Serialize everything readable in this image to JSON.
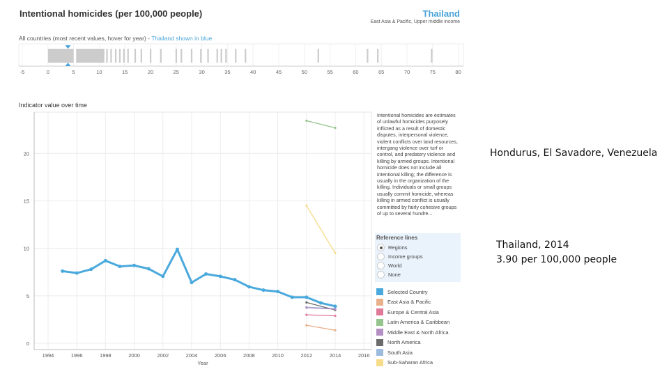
{
  "header": {
    "title": "Intentional homicides (per 100,000 people)",
    "country": "Thailand",
    "country_sub": "East Asia & Pacific, Upper middle income"
  },
  "strip": {
    "caption_prefix": "All countries (most recent values, hover for year) - ",
    "caption_highlight": "Thailand shown in blue",
    "ticks": [
      -5,
      0,
      5,
      10,
      15,
      20,
      25,
      30,
      35,
      40,
      45,
      50,
      55,
      60,
      65,
      70,
      75,
      80
    ],
    "dense_ranges": [
      [
        0,
        5
      ],
      [
        5.5,
        11
      ]
    ],
    "values": [
      11.5,
      12.3,
      13.2,
      14,
      14.8,
      15.6,
      17,
      18.2,
      20,
      22,
      25,
      26,
      28,
      29.8,
      31.2,
      33,
      33.8,
      34.7,
      36.6,
      38.5,
      52.7,
      62.3,
      64.3,
      74.8
    ],
    "selected_value": 3.9,
    "bar_color": "#cccccc",
    "marker_color": "#4aa3d8"
  },
  "chart_title": "Indicator value over time",
  "description": "Intentional homicides are estimates of unlawful homicides purposely inflicted as a result of domestic disputes, interpersonal violence, violent conflicts over land resources, intergang violence over turf or control, and predatory violence and killing by armed groups. Intentional homicide does not include all intentional killing; the difference is usually in the organization of the killing. Individuals or small groups usually commit homicide, whereas killing in armed conflict is usually committed by fairly cohesive groups of up to several hundre...",
  "reference_lines": {
    "title": "Reference lines",
    "options": [
      "Regions",
      "Income groups",
      "World",
      "None"
    ],
    "selected": "Regions"
  },
  "chart_data": {
    "type": "line",
    "xlabel": "Year",
    "ylabel": "",
    "xlim": [
      1993,
      2016.5
    ],
    "ylim": [
      0,
      25
    ],
    "xticks": [
      1994,
      1996,
      1998,
      2000,
      2002,
      2004,
      2006,
      2008,
      2010,
      2012,
      2014,
      2016
    ],
    "yticks": [
      0,
      5,
      10,
      15,
      20
    ],
    "grid": true,
    "series": [
      {
        "name": "Selected Country",
        "color": "#4aa9dc",
        "x": [
          1995,
          1996,
          1997,
          1998,
          1999,
          2000,
          2001,
          2002,
          2003,
          2004,
          2005,
          2006,
          2007,
          2008,
          2009,
          2010,
          2011,
          2012,
          2013,
          2014
        ],
        "y": [
          7.6,
          7.4,
          7.8,
          8.7,
          8.1,
          8.2,
          7.85,
          7.05,
          9.9,
          6.4,
          7.3,
          7.05,
          6.7,
          5.95,
          5.6,
          5.45,
          4.85,
          4.85,
          4.25,
          3.9
        ]
      },
      {
        "name": "East Asia & Pacific",
        "color": "#e9b08c",
        "x": [
          2012,
          2014
        ],
        "y": [
          1.9,
          1.37
        ]
      },
      {
        "name": "Europe & Central Asia",
        "color": "#e07a98",
        "x": [
          2012,
          2014
        ],
        "y": [
          3.0,
          2.9
        ]
      },
      {
        "name": "Latin America & Caribbean",
        "color": "#96c58e",
        "x": [
          2012,
          2014
        ],
        "y": [
          23.45,
          22.7
        ]
      },
      {
        "name": "Middle East & North Africa",
        "color": "#b38fc4",
        "x": [
          2012,
          2014
        ],
        "y": [
          3.75,
          3.6
        ]
      },
      {
        "name": "North America",
        "color": "#6b6b6b",
        "x": [
          2012,
          2014
        ],
        "y": [
          4.3,
          3.5
        ]
      },
      {
        "name": "South Asia",
        "color": "#9dbadf",
        "x": [
          2012,
          2014
        ],
        "y": [
          3.8,
          3.65
        ]
      },
      {
        "name": "Sub-Saharan Africa",
        "color": "#f7dc8a",
        "x": [
          2012,
          2014
        ],
        "y": [
          14.5,
          9.5
        ]
      }
    ]
  },
  "annotations": {
    "top": "Hondurus, El Savadore, Venezuela",
    "bottom_line1": "Thailand, 2014",
    "bottom_line2": "3.90 per 100,000 people"
  }
}
